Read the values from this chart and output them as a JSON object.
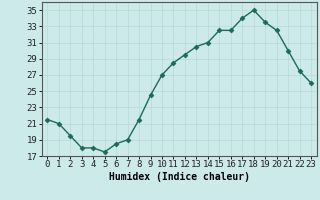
{
  "x": [
    0,
    1,
    2,
    3,
    4,
    5,
    6,
    7,
    8,
    9,
    10,
    11,
    12,
    13,
    14,
    15,
    16,
    17,
    18,
    19,
    20,
    21,
    22,
    23
  ],
  "y": [
    21.5,
    21.0,
    19.5,
    18.0,
    18.0,
    17.5,
    18.5,
    19.0,
    21.5,
    24.5,
    27.0,
    28.5,
    29.5,
    30.5,
    31.0,
    32.5,
    32.5,
    34.0,
    35.0,
    33.5,
    32.5,
    30.0,
    27.5,
    26.0
  ],
  "line_color": "#1a6b5a",
  "marker": "D",
  "marker_size": 2.5,
  "bg_color": "#cceaea",
  "grid_color": "#b8d8d8",
  "xlabel": "Humidex (Indice chaleur)",
  "xlim": [
    -0.5,
    23.5
  ],
  "ylim": [
    17,
    36
  ],
  "yticks": [
    17,
    19,
    21,
    23,
    25,
    27,
    29,
    31,
    33,
    35
  ],
  "xticks": [
    0,
    1,
    2,
    3,
    4,
    5,
    6,
    7,
    8,
    9,
    10,
    11,
    12,
    13,
    14,
    15,
    16,
    17,
    18,
    19,
    20,
    21,
    22,
    23
  ],
  "xlabel_fontsize": 7,
  "tick_fontsize": 6.5,
  "line_width": 1.0
}
